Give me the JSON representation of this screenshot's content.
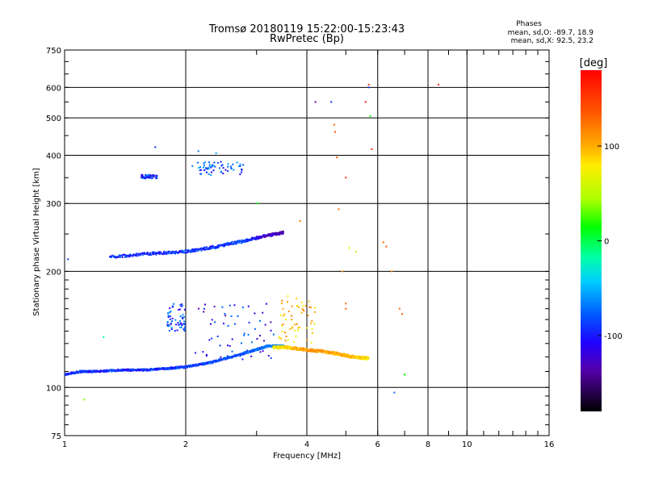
{
  "chart_data": {
    "type": "scatter",
    "title": "Tromsø 20180119 15:22:00-15:23:43",
    "subtitle": "RwPretec (Bp)",
    "xlabel": "Frequency [MHz]",
    "ylabel": "Stationary phase Virtual Height [km]",
    "x_scale": "log",
    "y_scale": "log",
    "xlim": [
      1,
      16
    ],
    "ylim": [
      75,
      750
    ],
    "x_ticks": [
      1,
      2,
      4,
      6,
      8,
      10,
      16
    ],
    "x_tick_labels": [
      "1",
      "2",
      "4",
      "6",
      "8",
      "10",
      "16"
    ],
    "y_ticks": [
      75,
      100,
      200,
      300,
      400,
      500,
      600,
      750
    ],
    "y_tick_labels": [
      "75",
      "100",
      "200",
      "300",
      "400",
      "500",
      "600",
      "750"
    ],
    "grid": true,
    "stats": {
      "header": "Phases",
      "line_o": "mean, sd,O: -89.7, 18.9",
      "line_x": "mean, sd,X:  92.5, 23.2"
    },
    "colorbar": {
      "label": "[deg]",
      "range": [
        -180,
        180
      ],
      "ticks": [
        100,
        0,
        -100
      ],
      "tick_labels": [
        "100",
        "0",
        "-100"
      ]
    },
    "series": [
      {
        "kind": "trace",
        "x": [
          1.0,
          1.1,
          1.2,
          1.4,
          1.6,
          1.8,
          2.0,
          2.3,
          2.6,
          2.9,
          3.2,
          3.5
        ],
        "y": [
          108,
          110,
          110,
          111,
          111,
          112,
          113,
          116,
          120,
          124,
          128,
          128
        ],
        "phase": [
          -105,
          -100,
          -100,
          -100,
          -100,
          -98,
          -95,
          -92,
          -90,
          -88,
          -80,
          -70
        ],
        "jitter": 0.008
      },
      {
        "kind": "trace",
        "x": [
          3.3,
          3.6,
          4.0,
          4.4,
          4.8,
          5.2,
          5.7
        ],
        "y": [
          127,
          127,
          125,
          124,
          122,
          120,
          119
        ],
        "phase": [
          75,
          90,
          110,
          105,
          100,
          95,
          80
        ],
        "jitter": 0.012
      },
      {
        "kind": "trace",
        "x": [
          1.3,
          1.6,
          2.0,
          2.4,
          2.8,
          3.2,
          3.5
        ],
        "y": [
          218,
          222,
          225,
          232,
          240,
          248,
          252
        ],
        "phase": [
          -100,
          -100,
          -98,
          -100,
          -95,
          -130,
          -135
        ],
        "jitter": 0.012
      },
      {
        "kind": "cluster",
        "x": [
          1.55,
          1.7
        ],
        "y": [
          348,
          356
        ],
        "phase": [
          -100,
          -100
        ],
        "jitter": 0.01
      },
      {
        "kind": "cluster",
        "x": [
          2.05,
          2.8
        ],
        "y": [
          355,
          385
        ],
        "phase": [
          -88,
          -85
        ],
        "jitter": 0.014
      },
      {
        "kind": "cluster",
        "x": [
          1.8,
          2.0
        ],
        "y": [
          140,
          165
        ],
        "phase": [
          -90,
          -90
        ],
        "jitter": 0.02
      },
      {
        "kind": "cluster",
        "x": [
          2.1,
          3.4
        ],
        "y": [
          118,
          165
        ],
        "phase": [
          -110,
          -110
        ],
        "jitter": 0.04
      },
      {
        "kind": "cluster",
        "x": [
          3.4,
          4.2
        ],
        "y": [
          130,
          175
        ],
        "phase": [
          100,
          90
        ],
        "jitter": 0.035
      },
      {
        "kind": "scatter_points",
        "x": [
          1.02,
          1.12,
          1.25,
          1.68,
          2.15,
          2.38,
          3.02,
          3.85,
          4.2,
          4.6,
          4.68,
          4.7,
          4.75,
          4.8,
          5.0,
          5.1,
          5.3,
          5.6,
          5.7,
          5.7,
          5.75,
          5.8,
          6.2,
          6.3,
          6.6,
          6.8,
          6.9,
          7.0,
          7.0,
          8.5,
          6.5,
          4.9,
          5.0,
          5.0
        ],
        "y": [
          215,
          93,
          135,
          420,
          410,
          405,
          300,
          270,
          550,
          550,
          480,
          460,
          395,
          290,
          350,
          230,
          225,
          550,
          610,
          600,
          505,
          415,
          238,
          232,
          97,
          160,
          155,
          108,
          108,
          610,
          200,
          200,
          165,
          160
        ],
        "phase": [
          -100,
          30,
          -20,
          -100,
          -80,
          -60,
          0,
          120,
          -140,
          -100,
          130,
          150,
          140,
          130,
          160,
          70,
          50,
          170,
          160,
          -100,
          0,
          160,
          130,
          140,
          -80,
          130,
          140,
          0,
          0,
          160,
          120,
          110,
          130,
          140
        ]
      }
    ]
  }
}
